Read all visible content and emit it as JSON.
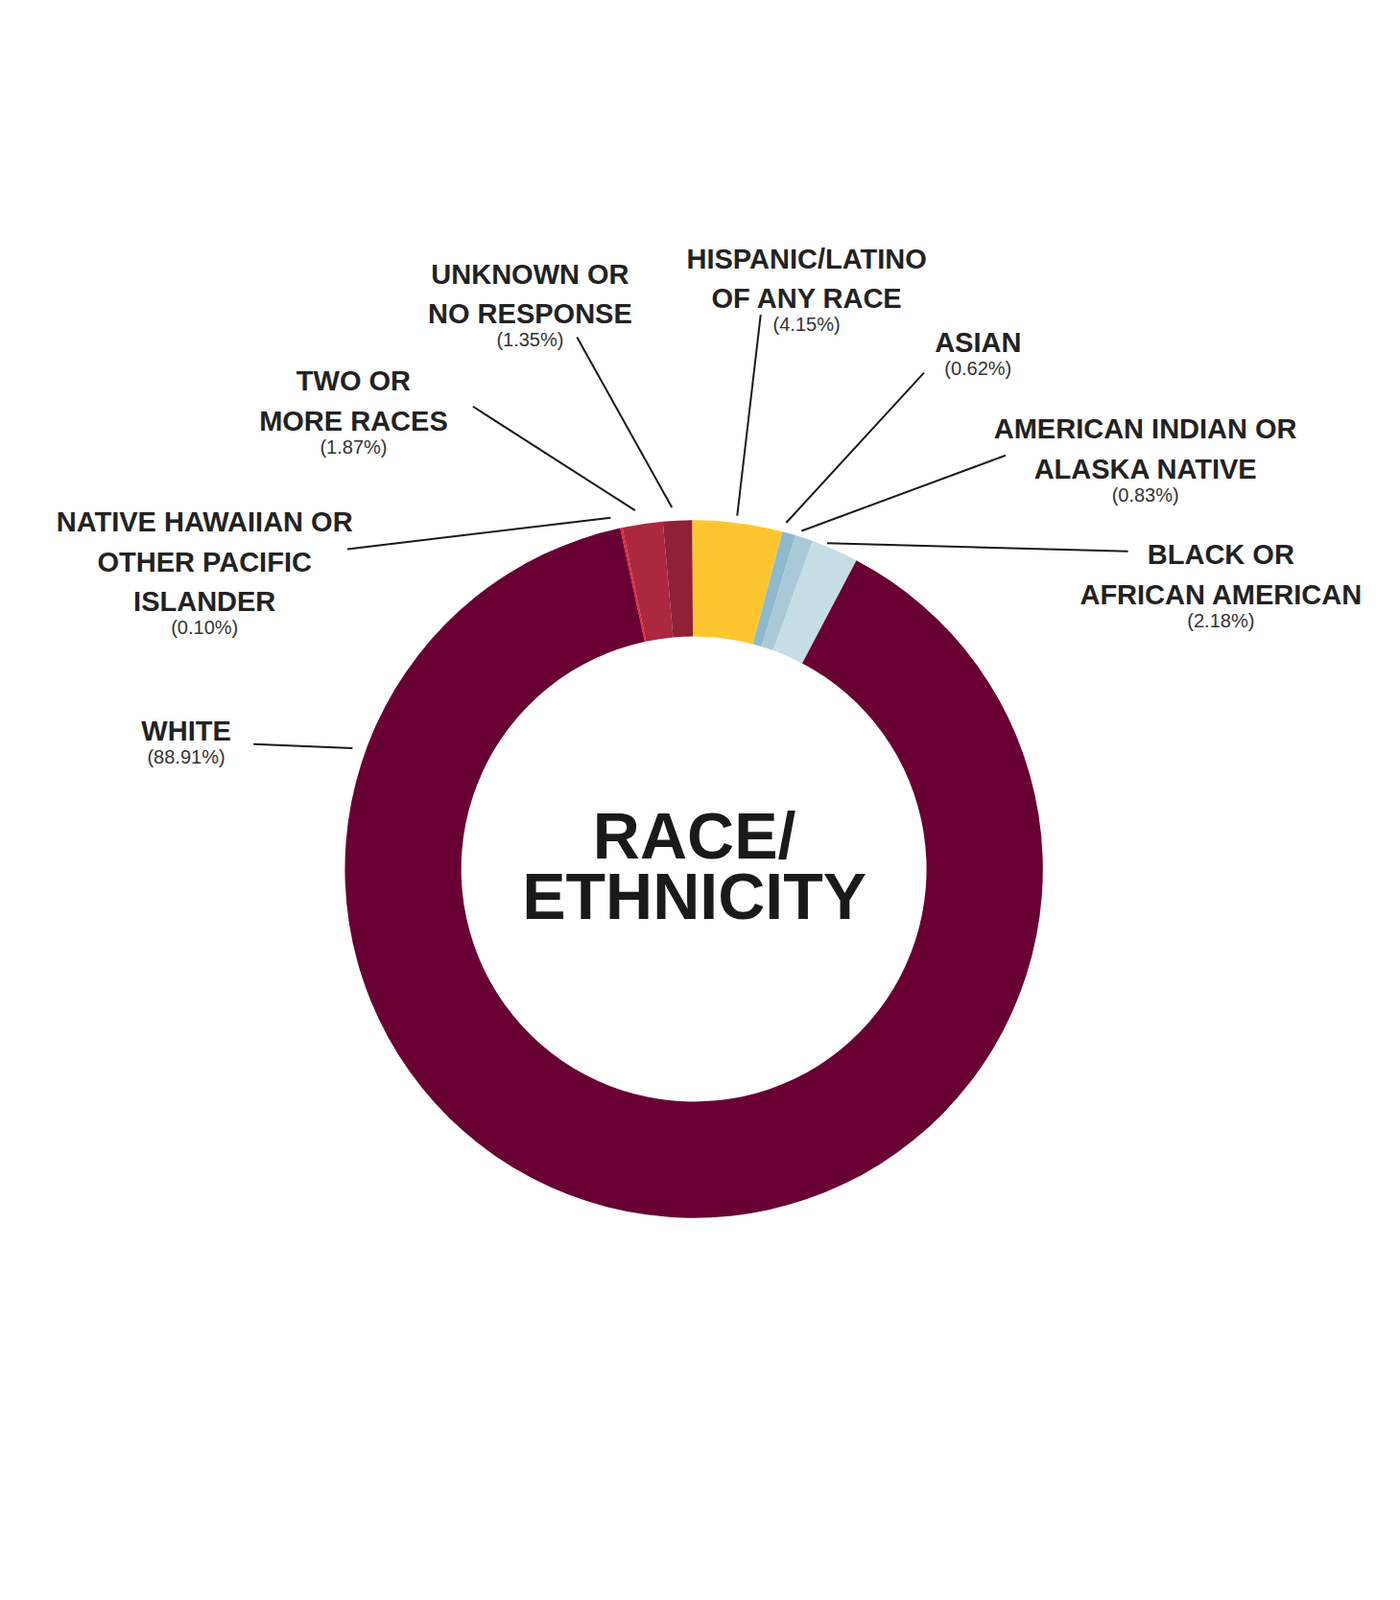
{
  "chart_data": {
    "type": "donut",
    "title": "RACE/ETHNICITY",
    "categories": [
      "NATIVE HAWAIIAN OR OTHER PACIFIC ISLANDER",
      "TWO OR MORE RACES",
      "UNKNOWN OR NO RESPONSE",
      "HISPANIC/LATINO OF ANY RACE",
      "ASIAN",
      "AMERICAN INDIAN OR ALASKA NATIVE",
      "BLACK OR AFRICAN AMERICAN",
      "WHITE"
    ],
    "values": [
      0.1,
      1.87,
      1.35,
      4.15,
      0.62,
      0.83,
      2.18,
      88.91
    ],
    "value_labels": [
      "(0.10%)",
      "(1.87%)",
      "(1.35%)",
      "(4.15%)",
      "(0.62%)",
      "(0.83%)",
      "(2.18%)",
      "(88.91%)"
    ],
    "colors": [
      "#e8243c",
      "#ab283f",
      "#8e2038",
      "#fdc62f",
      "#8fb9cd",
      "#a9c9d8",
      "#c6dde6",
      "#690033"
    ],
    "data_labels": true
  }
}
